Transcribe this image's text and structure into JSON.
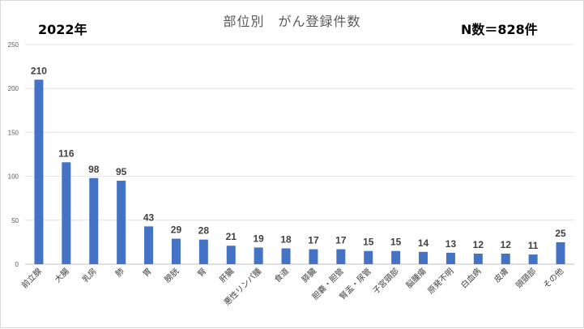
{
  "title": "部位別　がん登録件数",
  "year_label": "2022年",
  "n_label": "N数＝828件",
  "chart_data": {
    "type": "bar",
    "title": "部位別　がん登録件数",
    "xlabel": "",
    "ylabel": "",
    "ylim": [
      0,
      250
    ],
    "yticks": [
      0,
      50,
      100,
      150,
      200,
      250
    ],
    "grid": true,
    "legend": "none",
    "bar_color": "#4472c4",
    "categories": [
      "前立腺",
      "大腸",
      "乳房",
      "肺",
      "胃",
      "膀胱",
      "腎",
      "肝臓",
      "悪性リンパ腫",
      "食道",
      "膵臓",
      "胆嚢・胆管",
      "腎盂・尿管",
      "子宮頸部",
      "脳腫瘍",
      "原発不明",
      "白血病",
      "皮膚",
      "頭頸部",
      "その他"
    ],
    "values": [
      210,
      116,
      98,
      95,
      43,
      29,
      28,
      21,
      19,
      18,
      17,
      17,
      15,
      15,
      14,
      13,
      12,
      12,
      11,
      25
    ]
  }
}
